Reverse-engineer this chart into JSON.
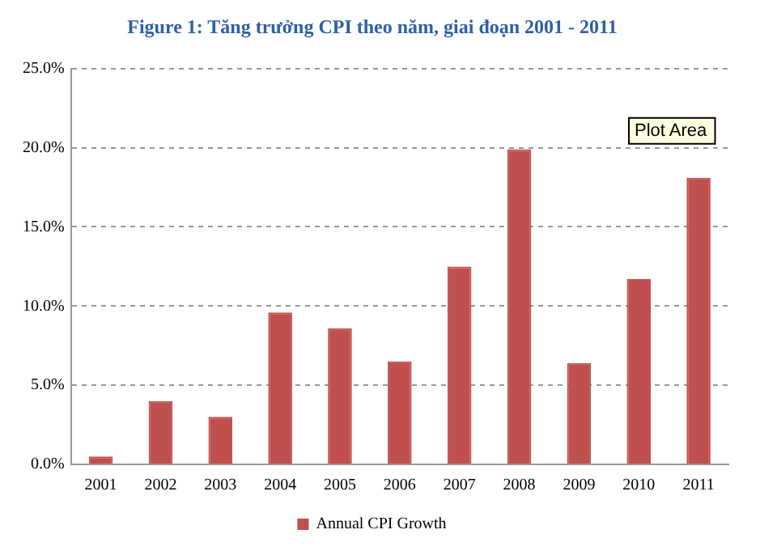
{
  "chart_data": {
    "type": "bar",
    "title": "Figure 1: Tăng trưởng CPI theo năm, giai đoạn 2001 - 2011",
    "categories": [
      "2001",
      "2002",
      "2003",
      "2004",
      "2005",
      "2006",
      "2007",
      "2008",
      "2009",
      "2010",
      "2011"
    ],
    "series": [
      {
        "name": "Annual CPI Growth",
        "color": "#c0504d",
        "values": [
          0.5,
          4.0,
          3.0,
          9.6,
          8.6,
          6.5,
          12.5,
          19.9,
          6.4,
          11.7,
          18.1
        ]
      }
    ],
    "ylim": [
      0,
      25
    ],
    "yticks": [
      {
        "value": 0,
        "label": "0.0%"
      },
      {
        "value": 5,
        "label": "5.0%"
      },
      {
        "value": 10,
        "label": "10.0%"
      },
      {
        "value": 15,
        "label": "15.0%"
      },
      {
        "value": 20,
        "label": "20.0%"
      },
      {
        "value": 25,
        "label": "25.0%"
      }
    ],
    "grid": "y",
    "legend": "bottom",
    "annotations": [
      "Plot Area"
    ]
  }
}
